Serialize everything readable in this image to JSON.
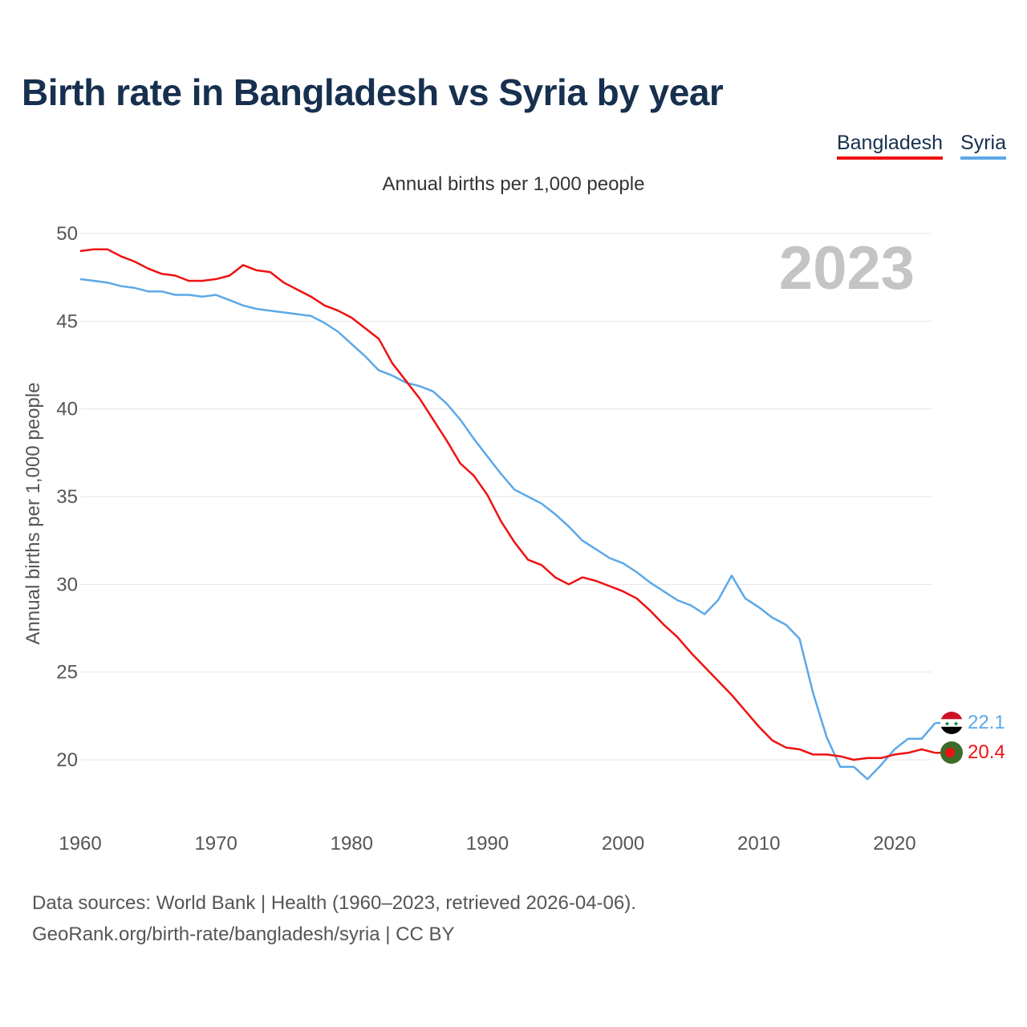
{
  "title": "Birth rate in Bangladesh vs Syria by year",
  "legend": {
    "bangladesh": "Bangladesh",
    "syria": "Syria"
  },
  "subtitle": "Annual births per 1,000 people",
  "footer": {
    "line1": "Data sources: World Bank | Health (1960–2023, retrieved 2026-04-06).",
    "line2": "GeoRank.org/birth-rate/bangladesh/syria | CC BY"
  },
  "colors": {
    "bangladesh": "#ee1111",
    "syria": "#5ca8e8",
    "year_watermark": "#c4c4c4",
    "grid": "#e6e6e6"
  },
  "chart_data": {
    "type": "line",
    "title": "Birth rate in Bangladesh vs Syria by year",
    "ylabel": "Annual births per 1,000 people",
    "xlabel": "",
    "ylim": [
      17,
      50
    ],
    "xlim": [
      1960,
      2024.5
    ],
    "yticks": [
      20,
      25,
      30,
      35,
      40,
      45,
      50
    ],
    "xticks": [
      1960,
      1970,
      1980,
      1990,
      2000,
      2010,
      2020
    ],
    "grid": true,
    "legend_position": "top-right",
    "year_label": "2023",
    "x": [
      1960,
      1961,
      1962,
      1963,
      1964,
      1965,
      1966,
      1967,
      1968,
      1969,
      1970,
      1971,
      1972,
      1973,
      1974,
      1975,
      1976,
      1977,
      1978,
      1979,
      1980,
      1981,
      1982,
      1983,
      1984,
      1985,
      1986,
      1987,
      1988,
      1989,
      1990,
      1991,
      1992,
      1993,
      1994,
      1995,
      1996,
      1997,
      1998,
      1999,
      2000,
      2001,
      2002,
      2003,
      2004,
      2005,
      2006,
      2007,
      2008,
      2009,
      2010,
      2011,
      2012,
      2013,
      2014,
      2015,
      2016,
      2017,
      2018,
      2019,
      2020,
      2021,
      2022,
      2023
    ],
    "series": [
      {
        "name": "Bangladesh",
        "end_label": "20.4",
        "values": [
          49.0,
          49.1,
          49.1,
          48.7,
          48.4,
          48.0,
          47.7,
          47.6,
          47.3,
          47.3,
          47.4,
          47.6,
          48.2,
          47.9,
          47.8,
          47.2,
          46.8,
          46.4,
          45.9,
          45.6,
          45.2,
          44.6,
          44.0,
          42.6,
          41.6,
          40.6,
          39.4,
          38.2,
          36.9,
          36.2,
          35.1,
          33.6,
          32.4,
          31.4,
          31.1,
          30.4,
          30.0,
          30.4,
          30.2,
          29.9,
          29.6,
          29.2,
          28.5,
          27.7,
          27.0,
          26.1,
          25.3,
          24.5,
          23.7,
          22.8,
          21.9,
          21.1,
          20.7,
          20.6,
          20.3,
          20.3,
          20.2,
          20.0,
          20.1,
          20.1,
          20.3,
          20.4,
          20.6,
          20.4
        ]
      },
      {
        "name": "Syria",
        "end_label": "22.1",
        "values": [
          47.4,
          47.3,
          47.2,
          47.0,
          46.9,
          46.7,
          46.7,
          46.5,
          46.5,
          46.4,
          46.5,
          46.2,
          45.9,
          45.7,
          45.6,
          45.5,
          45.4,
          45.3,
          44.9,
          44.4,
          43.7,
          43.0,
          42.2,
          41.9,
          41.5,
          41.3,
          41.0,
          40.3,
          39.4,
          38.3,
          37.3,
          36.3,
          35.4,
          35.0,
          34.6,
          34.0,
          33.3,
          32.5,
          32.0,
          31.5,
          31.2,
          30.7,
          30.1,
          29.6,
          29.1,
          28.8,
          28.3,
          29.1,
          30.5,
          29.2,
          28.7,
          28.1,
          27.7,
          26.9,
          23.8,
          21.3,
          19.6,
          19.6,
          18.9,
          19.7,
          20.6,
          21.2,
          21.2,
          22.1
        ]
      }
    ]
  }
}
